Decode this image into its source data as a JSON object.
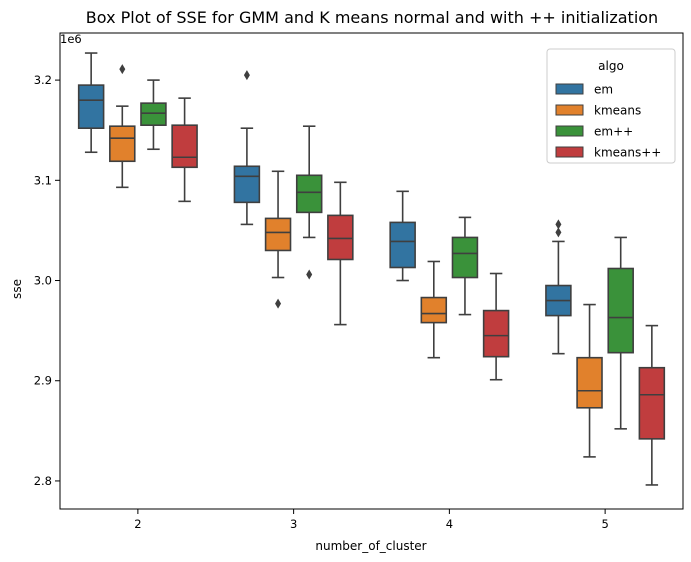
{
  "chart_data": {
    "type": "box",
    "title": "Box Plot of SSE for GMM and K means normal and with ++ initialization",
    "xlabel": "number_of_cluster",
    "ylabel": "sse",
    "y_offset_text": "1e6",
    "ylim": [
      2.772,
      3.247
    ],
    "y_ticks": [
      {
        "value": 2.8,
        "label": "2.8"
      },
      {
        "value": 2.9,
        "label": "2.9"
      },
      {
        "value": 3.0,
        "label": "3.0"
      },
      {
        "value": 3.1,
        "label": "3.1"
      },
      {
        "value": 3.2,
        "label": "3.2"
      }
    ],
    "categories": [
      "2",
      "3",
      "4",
      "5"
    ],
    "legend": {
      "title": "algo",
      "position": "top-right"
    },
    "series": [
      {
        "name": "em",
        "color": "#3274a1",
        "boxes": [
          {
            "whisker_low": 3.128,
            "q1": 3.152,
            "median": 3.18,
            "q3": 3.195,
            "whisker_high": 3.227,
            "outliers": []
          },
          {
            "whisker_low": 3.056,
            "q1": 3.078,
            "median": 3.104,
            "q3": 3.114,
            "whisker_high": 3.152,
            "outliers": [
              3.205
            ]
          },
          {
            "whisker_low": 3.0,
            "q1": 3.013,
            "median": 3.039,
            "q3": 3.058,
            "whisker_high": 3.089,
            "outliers": []
          },
          {
            "whisker_low": 2.927,
            "q1": 2.965,
            "median": 2.98,
            "q3": 2.995,
            "whisker_high": 3.039,
            "outliers": [
              3.048,
              3.056
            ]
          }
        ]
      },
      {
        "name": "kmeans",
        "color": "#e1812c",
        "boxes": [
          {
            "whisker_low": 3.093,
            "q1": 3.119,
            "median": 3.142,
            "q3": 3.154,
            "whisker_high": 3.174,
            "outliers": [
              3.211
            ]
          },
          {
            "whisker_low": 3.003,
            "q1": 3.03,
            "median": 3.048,
            "q3": 3.062,
            "whisker_high": 3.109,
            "outliers": [
              2.977
            ]
          },
          {
            "whisker_low": 2.923,
            "q1": 2.958,
            "median": 2.967,
            "q3": 2.983,
            "whisker_high": 3.019,
            "outliers": []
          },
          {
            "whisker_low": 2.824,
            "q1": 2.873,
            "median": 2.89,
            "q3": 2.923,
            "whisker_high": 2.976,
            "outliers": []
          }
        ]
      },
      {
        "name": "em++",
        "color": "#3a923a",
        "boxes": [
          {
            "whisker_low": 3.131,
            "q1": 3.155,
            "median": 3.167,
            "q3": 3.177,
            "whisker_high": 3.2,
            "outliers": []
          },
          {
            "whisker_low": 3.043,
            "q1": 3.068,
            "median": 3.088,
            "q3": 3.105,
            "whisker_high": 3.154,
            "outliers": [
              3.006
            ]
          },
          {
            "whisker_low": 2.966,
            "q1": 3.003,
            "median": 3.027,
            "q3": 3.043,
            "whisker_high": 3.063,
            "outliers": []
          },
          {
            "whisker_low": 2.852,
            "q1": 2.928,
            "median": 2.963,
            "q3": 3.012,
            "whisker_high": 3.043,
            "outliers": []
          }
        ]
      },
      {
        "name": "kmeans++",
        "color": "#c03d3e",
        "boxes": [
          {
            "whisker_low": 3.079,
            "q1": 3.113,
            "median": 3.123,
            "q3": 3.155,
            "whisker_high": 3.182,
            "outliers": []
          },
          {
            "whisker_low": 2.956,
            "q1": 3.021,
            "median": 3.042,
            "q3": 3.065,
            "whisker_high": 3.098,
            "outliers": []
          },
          {
            "whisker_low": 2.901,
            "q1": 2.924,
            "median": 2.945,
            "q3": 2.97,
            "whisker_high": 3.007,
            "outliers": []
          },
          {
            "whisker_low": 2.796,
            "q1": 2.842,
            "median": 2.886,
            "q3": 2.913,
            "whisker_high": 2.955,
            "outliers": []
          }
        ]
      }
    ],
    "grid": false
  }
}
